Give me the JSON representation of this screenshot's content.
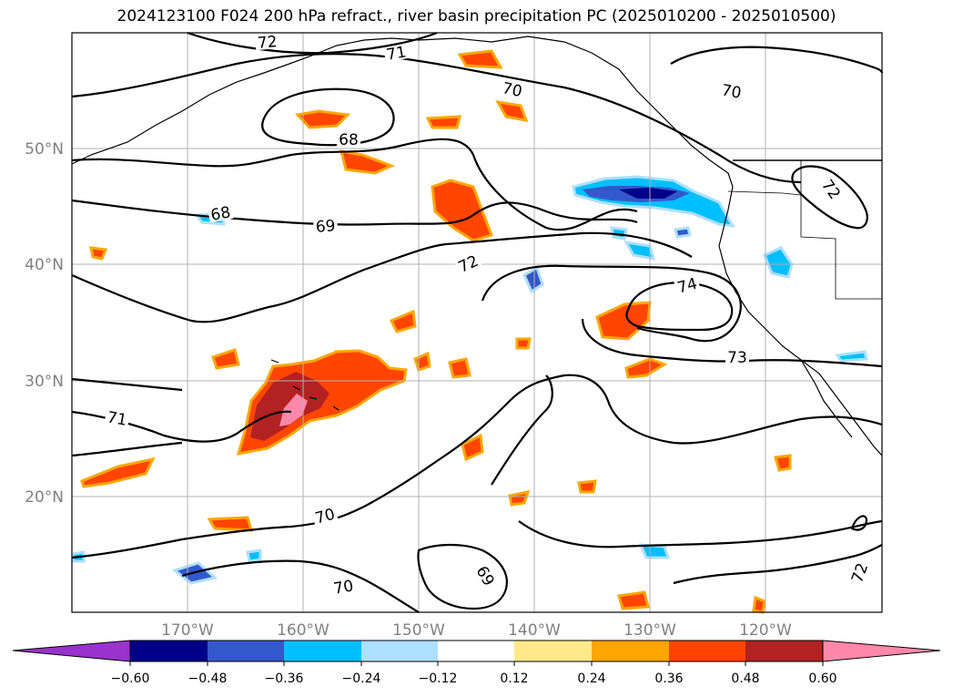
{
  "title": "2024123100 F024 200 hPa refract., river basin precipitation PC (2025010200 - 2025010500)",
  "map": {
    "lat_labels": [
      "50°N",
      "40°N",
      "30°N",
      "20°N"
    ],
    "lon_labels": [
      "170°W",
      "160°W",
      "150°W",
      "140°W",
      "130°W",
      "120°W"
    ],
    "contour_labels": [
      "72",
      "71",
      "70",
      "70",
      "68",
      "68",
      "69",
      "72",
      "74",
      "73",
      "71",
      "70",
      "70",
      "69",
      "72",
      "72"
    ],
    "colors": {
      "coast": "#000000",
      "contour": "#000000",
      "grid": "#b0b0b0"
    }
  },
  "colorbar": {
    "ticks": [
      "−0.60",
      "−0.48",
      "−0.36",
      "−0.24",
      "−0.12",
      "0.12",
      "0.24",
      "0.36",
      "0.48",
      "0.60"
    ],
    "colors": [
      "#9933cc",
      "#00008b",
      "#3358cc",
      "#00bfff",
      "#addfff",
      "#ffffff",
      "#ffe98a",
      "#ffa500",
      "#ff4500",
      "#b22222",
      "#ff88aa"
    ]
  }
}
